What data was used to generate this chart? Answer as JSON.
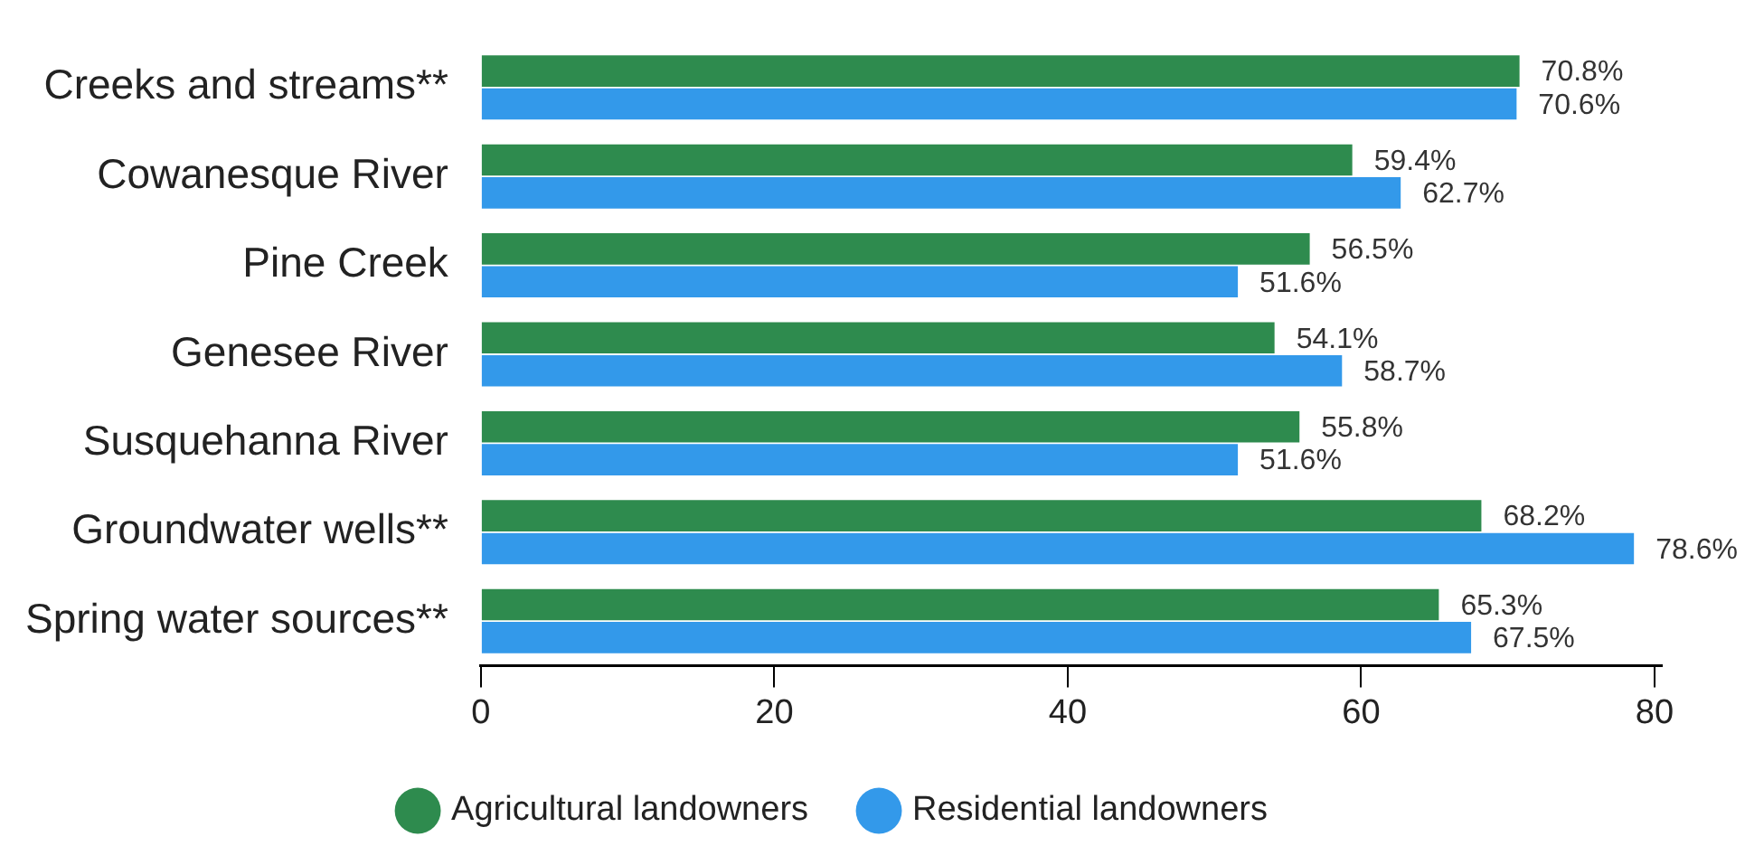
{
  "chart_data": {
    "type": "bar",
    "orientation": "horizontal",
    "categories": [
      "Creeks and streams**",
      "Cowanesque River",
      "Pine Creek",
      "Genesee River",
      "Susquehanna River",
      "Groundwater wells**",
      "Spring water sources**"
    ],
    "series": [
      {
        "name": "Agricultural landowners",
        "color": "#2e8b4e",
        "values": [
          70.8,
          59.4,
          56.5,
          54.1,
          55.8,
          68.2,
          65.3
        ],
        "value_labels": [
          "70.8%",
          "59.4%",
          "56.5%",
          "54.1%",
          "55.8%",
          "68.2%",
          "65.3%"
        ]
      },
      {
        "name": "Residential landowners",
        "color": "#3399ea",
        "values": [
          70.6,
          62.7,
          51.6,
          58.7,
          51.6,
          78.6,
          67.5
        ],
        "value_labels": [
          "70.6%",
          "62.7%",
          "51.6%",
          "58.7%",
          "51.6%",
          "78.6%",
          "67.5%"
        ]
      }
    ],
    "xlim": [
      0,
      80.5
    ],
    "xticks": [
      0,
      20,
      40,
      60,
      80
    ],
    "grid": false,
    "legend": "bottom"
  }
}
